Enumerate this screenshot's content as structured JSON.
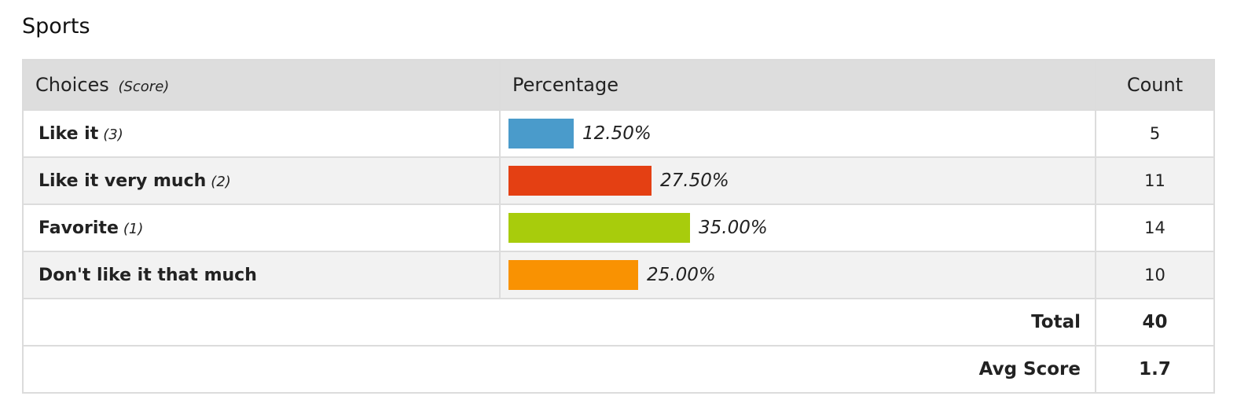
{
  "title": "Sports",
  "headers": {
    "choices": "Choices",
    "score": "(Score)",
    "percentage": "Percentage",
    "count": "Count"
  },
  "rows": [
    {
      "label": "Like it",
      "score": "(3)",
      "percent_text": "12.50%",
      "percent": 12.5,
      "count": "5",
      "color": "#4a9bcb"
    },
    {
      "label": "Like it very much",
      "score": "(2)",
      "percent_text": "27.50%",
      "percent": 27.5,
      "count": "11",
      "color": "#e44013"
    },
    {
      "label": "Favorite",
      "score": "(1)",
      "percent_text": "35.00%",
      "percent": 35.0,
      "count": "14",
      "color": "#a8cc0c"
    },
    {
      "label": "Don't like it that much",
      "score": "",
      "percent_text": "25.00%",
      "percent": 25.0,
      "count": "10",
      "color": "#f99202"
    }
  ],
  "footer": {
    "total_label": "Total",
    "total_value": "40",
    "avg_label": "Avg Score",
    "avg_value": "1.7"
  }
}
